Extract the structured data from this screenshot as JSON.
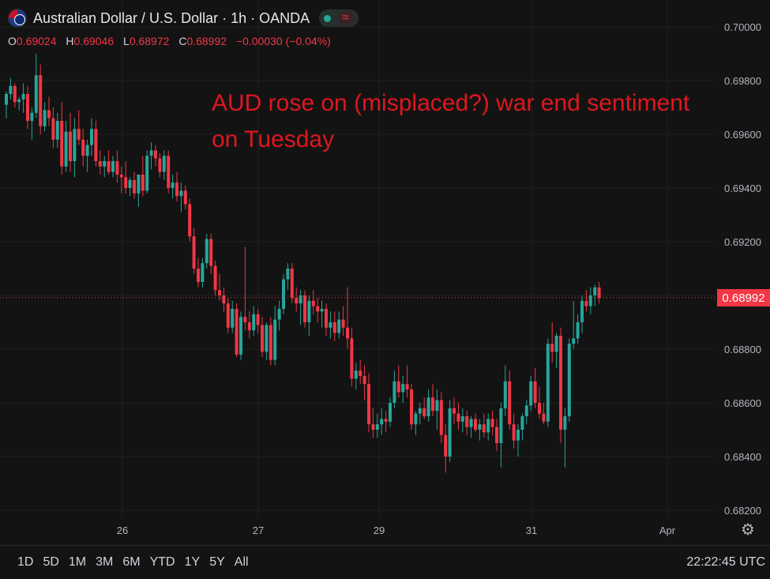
{
  "header": {
    "title": "Australian Dollar / U.S. Dollar · 1h · OANDA",
    "flag_icon": "aud-usd-flag-icon",
    "status_icon": "market-open-dot-icon",
    "wave_symbol": "≈"
  },
  "ohlc": {
    "o_label": "O",
    "o_value": "0.69024",
    "h_label": "H",
    "h_value": "0.69046",
    "l_label": "L",
    "l_value": "0.68972",
    "c_label": "C",
    "c_value": "0.68992",
    "change": "−0.00030 (−0.04%)"
  },
  "annotation": {
    "line1": "AUD rose on (misplaced?) war end sentiment",
    "line2": "on Tuesday"
  },
  "price_axis": {
    "ticks": [
      "0.70000",
      "0.69800",
      "0.69600",
      "0.69400",
      "0.69200",
      "0.68800",
      "0.68600",
      "0.68400",
      "0.68200"
    ],
    "current_price": "0.68992"
  },
  "time_axis": {
    "ticks": [
      "26",
      "27",
      "29",
      "31",
      "Apr"
    ]
  },
  "bottom_bar": {
    "timeframes": [
      "1D",
      "5D",
      "1M",
      "3M",
      "6M",
      "YTD",
      "1Y",
      "5Y",
      "All"
    ],
    "clock": "22:22:45 UTC"
  },
  "colors": {
    "up": "#26a69a",
    "down": "#f23645",
    "background": "#131313",
    "annotation": "#e0161e"
  },
  "chart_data": {
    "type": "candlestick",
    "title": "Australian Dollar / U.S. Dollar · 1h · OANDA",
    "ylim": [
      0.6815,
      0.7005
    ],
    "current_price": 0.68992,
    "x_ticks": [
      {
        "label": "26",
        "index": 29
      },
      {
        "label": "27",
        "index": 61
      },
      {
        "label": "29",
        "index": 90
      },
      {
        "label": "31",
        "index": 125
      },
      {
        "label": "Apr",
        "index": 156
      }
    ],
    "grid": true,
    "ohlc": [
      [
        0.6971,
        0.6976,
        0.6966,
        0.6975
      ],
      [
        0.6975,
        0.6981,
        0.6973,
        0.6978
      ],
      [
        0.6978,
        0.6979,
        0.697,
        0.6972
      ],
      [
        0.6972,
        0.6974,
        0.6969,
        0.6973
      ],
      [
        0.6973,
        0.6979,
        0.6968,
        0.6975
      ],
      [
        0.6975,
        0.6978,
        0.6962,
        0.6965
      ],
      [
        0.6965,
        0.697,
        0.6958,
        0.6968
      ],
      [
        0.6968,
        0.699,
        0.6966,
        0.6982
      ],
      [
        0.6982,
        0.6986,
        0.696,
        0.6963
      ],
      [
        0.6963,
        0.6972,
        0.6961,
        0.6969
      ],
      [
        0.6969,
        0.6974,
        0.6963,
        0.6966
      ],
      [
        0.6966,
        0.697,
        0.6955,
        0.6958
      ],
      [
        0.6958,
        0.6968,
        0.6955,
        0.6965
      ],
      [
        0.6965,
        0.6972,
        0.6945,
        0.6948
      ],
      [
        0.6948,
        0.6965,
        0.6946,
        0.6961
      ],
      [
        0.6961,
        0.6968,
        0.6946,
        0.695
      ],
      [
        0.695,
        0.6966,
        0.6944,
        0.6962
      ],
      [
        0.6962,
        0.6969,
        0.6956,
        0.6958
      ],
      [
        0.6958,
        0.6962,
        0.6948,
        0.6952
      ],
      [
        0.6952,
        0.6958,
        0.6946,
        0.6956
      ],
      [
        0.6956,
        0.6966,
        0.6952,
        0.6962
      ],
      [
        0.6962,
        0.6965,
        0.6948,
        0.695
      ],
      [
        0.695,
        0.6954,
        0.6945,
        0.6948
      ],
      [
        0.6948,
        0.6952,
        0.6944,
        0.695
      ],
      [
        0.695,
        0.6954,
        0.6945,
        0.6946
      ],
      [
        0.6946,
        0.6952,
        0.6944,
        0.695
      ],
      [
        0.695,
        0.6954,
        0.6942,
        0.6945
      ],
      [
        0.6945,
        0.6948,
        0.6938,
        0.6944
      ],
      [
        0.6944,
        0.695,
        0.6938,
        0.694
      ],
      [
        0.694,
        0.6944,
        0.6937,
        0.6943
      ],
      [
        0.6943,
        0.6946,
        0.6936,
        0.6938
      ],
      [
        0.6938,
        0.6944,
        0.6933,
        0.6945
      ],
      [
        0.6945,
        0.6952,
        0.6937,
        0.6939
      ],
      [
        0.6939,
        0.6954,
        0.6938,
        0.6952
      ],
      [
        0.6952,
        0.6957,
        0.6947,
        0.6954
      ],
      [
        0.6954,
        0.6956,
        0.6948,
        0.6951
      ],
      [
        0.6951,
        0.6953,
        0.6944,
        0.6946
      ],
      [
        0.6946,
        0.6954,
        0.6943,
        0.6952
      ],
      [
        0.6952,
        0.6954,
        0.6938,
        0.694
      ],
      [
        0.694,
        0.6945,
        0.6936,
        0.6942
      ],
      [
        0.6942,
        0.6946,
        0.6935,
        0.6937
      ],
      [
        0.6937,
        0.6942,
        0.6931,
        0.6939
      ],
      [
        0.6939,
        0.6941,
        0.6932,
        0.6934
      ],
      [
        0.6934,
        0.6936,
        0.692,
        0.6922
      ],
      [
        0.6922,
        0.6925,
        0.6908,
        0.691
      ],
      [
        0.691,
        0.6914,
        0.6903,
        0.6905
      ],
      [
        0.6905,
        0.6914,
        0.6903,
        0.6912
      ],
      [
        0.6912,
        0.6923,
        0.691,
        0.6921
      ],
      [
        0.6921,
        0.6923,
        0.6908,
        0.6911
      ],
      [
        0.6911,
        0.6913,
        0.69,
        0.6902
      ],
      [
        0.6902,
        0.6908,
        0.6898,
        0.69
      ],
      [
        0.69,
        0.6903,
        0.6894,
        0.6897
      ],
      [
        0.6897,
        0.6899,
        0.6886,
        0.6888
      ],
      [
        0.6888,
        0.6898,
        0.6886,
        0.6895
      ],
      [
        0.6895,
        0.6897,
        0.6877,
        0.6878
      ],
      [
        0.6878,
        0.6894,
        0.6876,
        0.6892
      ],
      [
        0.6892,
        0.6918,
        0.6887,
        0.689
      ],
      [
        0.689,
        0.6894,
        0.6884,
        0.6887
      ],
      [
        0.6887,
        0.6896,
        0.6885,
        0.6893
      ],
      [
        0.6893,
        0.6895,
        0.6886,
        0.6889
      ],
      [
        0.6889,
        0.6892,
        0.6877,
        0.6879
      ],
      [
        0.6879,
        0.689,
        0.6876,
        0.6889
      ],
      [
        0.6889,
        0.6892,
        0.6874,
        0.6876
      ],
      [
        0.6876,
        0.6896,
        0.6874,
        0.6891
      ],
      [
        0.6891,
        0.6898,
        0.6887,
        0.6895
      ],
      [
        0.6895,
        0.6908,
        0.6893,
        0.6906
      ],
      [
        0.6906,
        0.6912,
        0.6902,
        0.691
      ],
      [
        0.691,
        0.6912,
        0.6897,
        0.6899
      ],
      [
        0.6899,
        0.6903,
        0.6894,
        0.6897
      ],
      [
        0.6897,
        0.6902,
        0.6889,
        0.69
      ],
      [
        0.69,
        0.6902,
        0.6888,
        0.689
      ],
      [
        0.689,
        0.69,
        0.6885,
        0.6898
      ],
      [
        0.6898,
        0.6902,
        0.6893,
        0.6896
      ],
      [
        0.6896,
        0.6899,
        0.689,
        0.6894
      ],
      [
        0.6894,
        0.6898,
        0.6888,
        0.6895
      ],
      [
        0.6895,
        0.6897,
        0.6885,
        0.6888
      ],
      [
        0.6888,
        0.6894,
        0.6884,
        0.689
      ],
      [
        0.689,
        0.6894,
        0.6883,
        0.6886
      ],
      [
        0.6886,
        0.6894,
        0.6884,
        0.6891
      ],
      [
        0.6891,
        0.6896,
        0.6885,
        0.6888
      ],
      [
        0.6888,
        0.6903,
        0.688,
        0.6884
      ],
      [
        0.6884,
        0.6888,
        0.6866,
        0.6869
      ],
      [
        0.6869,
        0.6875,
        0.6865,
        0.6872
      ],
      [
        0.6872,
        0.6876,
        0.6867,
        0.687
      ],
      [
        0.687,
        0.6874,
        0.6861,
        0.6867
      ],
      [
        0.6867,
        0.6871,
        0.6849,
        0.6852
      ],
      [
        0.6852,
        0.6858,
        0.6847,
        0.685
      ],
      [
        0.685,
        0.6856,
        0.6847,
        0.6852
      ],
      [
        0.6852,
        0.6858,
        0.6848,
        0.6854
      ],
      [
        0.6854,
        0.6857,
        0.6849,
        0.6853
      ],
      [
        0.6853,
        0.6862,
        0.6851,
        0.686
      ],
      [
        0.686,
        0.6872,
        0.6858,
        0.6868
      ],
      [
        0.6868,
        0.6874,
        0.6862,
        0.6864
      ],
      [
        0.6864,
        0.687,
        0.686,
        0.6867
      ],
      [
        0.6867,
        0.6874,
        0.6862,
        0.6865
      ],
      [
        0.6865,
        0.6867,
        0.685,
        0.6852
      ],
      [
        0.6852,
        0.6857,
        0.6848,
        0.6856
      ],
      [
        0.6856,
        0.686,
        0.6852,
        0.6858
      ],
      [
        0.6858,
        0.6862,
        0.6854,
        0.6855
      ],
      [
        0.6855,
        0.6865,
        0.6853,
        0.6862
      ],
      [
        0.6862,
        0.6867,
        0.6855,
        0.6857
      ],
      [
        0.6857,
        0.6865,
        0.685,
        0.6861
      ],
      [
        0.6861,
        0.6864,
        0.6845,
        0.6848
      ],
      [
        0.6848,
        0.6852,
        0.6834,
        0.684
      ],
      [
        0.684,
        0.6861,
        0.6838,
        0.6858
      ],
      [
        0.6858,
        0.6862,
        0.6852,
        0.6856
      ],
      [
        0.6856,
        0.686,
        0.685,
        0.6853
      ],
      [
        0.6853,
        0.6858,
        0.6849,
        0.6855
      ],
      [
        0.6855,
        0.6857,
        0.6848,
        0.6851
      ],
      [
        0.6851,
        0.6855,
        0.6847,
        0.6854
      ],
      [
        0.6854,
        0.6856,
        0.6849,
        0.685
      ],
      [
        0.685,
        0.6854,
        0.6846,
        0.6852
      ],
      [
        0.6852,
        0.6856,
        0.6847,
        0.6849
      ],
      [
        0.6849,
        0.6856,
        0.6846,
        0.6854
      ],
      [
        0.6854,
        0.6857,
        0.6848,
        0.6851
      ],
      [
        0.6851,
        0.6854,
        0.6842,
        0.6845
      ],
      [
        0.6845,
        0.686,
        0.6836,
        0.6858
      ],
      [
        0.6858,
        0.6874,
        0.6855,
        0.6868
      ],
      [
        0.6868,
        0.6872,
        0.685,
        0.6852
      ],
      [
        0.6852,
        0.6856,
        0.6843,
        0.6846
      ],
      [
        0.6846,
        0.6852,
        0.684,
        0.685
      ],
      [
        0.685,
        0.6856,
        0.6846,
        0.6855
      ],
      [
        0.6855,
        0.6861,
        0.6852,
        0.6859
      ],
      [
        0.6859,
        0.687,
        0.6857,
        0.6868
      ],
      [
        0.6868,
        0.6873,
        0.6858,
        0.686
      ],
      [
        0.686,
        0.6866,
        0.6854,
        0.6856
      ],
      [
        0.6856,
        0.686,
        0.6852,
        0.6853
      ],
      [
        0.6853,
        0.6884,
        0.6851,
        0.6882
      ],
      [
        0.6882,
        0.689,
        0.6875,
        0.6879
      ],
      [
        0.6879,
        0.6886,
        0.6873,
        0.6885
      ],
      [
        0.6885,
        0.6888,
        0.6845,
        0.685
      ],
      [
        0.685,
        0.6858,
        0.6836,
        0.6855
      ],
      [
        0.6855,
        0.6884,
        0.6853,
        0.6882
      ],
      [
        0.6882,
        0.6898,
        0.688,
        0.6884
      ],
      [
        0.6884,
        0.6893,
        0.6882,
        0.689
      ],
      [
        0.689,
        0.69,
        0.6886,
        0.6898
      ],
      [
        0.6898,
        0.6902,
        0.6894,
        0.6896
      ],
      [
        0.6896,
        0.6903,
        0.6893,
        0.69
      ],
      [
        0.69,
        0.6904,
        0.6896,
        0.6903
      ],
      [
        0.6903,
        0.6905,
        0.6897,
        0.6899
      ]
    ]
  }
}
